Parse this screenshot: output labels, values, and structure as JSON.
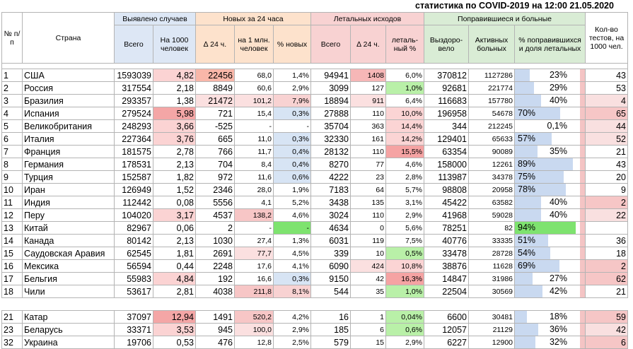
{
  "title": "статистика по COVID-2019 на 12:00 21.05.2020",
  "headers": {
    "index": "№ п/п",
    "country": "Страна",
    "detected": "Выявлено случаев",
    "new24": "Новых за 24 часа",
    "deaths": "Летальных исходов",
    "recovered_sick": "Поправившиеся и больные",
    "tests": "Кол-во тестов, на 1000 чел.",
    "total": "Всего",
    "per1000": "На 1000 человек",
    "delta24": "∆ 24 ч.",
    "per_million": "на 1 млн. человек",
    "pct_new": "% новых",
    "deaths_total": "Всего",
    "deaths_delta": "∆ 24 ч.",
    "lethal_pct": "леталь-ный %",
    "recovered": "Выздоро-вело",
    "active": "Активных больных",
    "pct_recovered": "% поправившихся и доля летальных"
  },
  "rows": [
    {
      "n": "1",
      "country": "США",
      "total": "1593039",
      "per1000": "4,82",
      "d24": "22456",
      "pm": "68,0",
      "pn": "1,4%",
      "dt": "94941",
      "dd": "1408",
      "lp": "6,0%",
      "rec": "370812",
      "act": "1127286",
      "rp": "23%",
      "rpv": 0.23,
      "rpa": "right",
      "tests": "43"
    },
    {
      "n": "2",
      "country": "Россия",
      "total": "317554",
      "per1000": "2,18",
      "d24": "8849",
      "pm": "60,6",
      "pn": "2,9%",
      "dt": "3099",
      "dd": "127",
      "lp": "1,0%",
      "rec": "92681",
      "act": "221774",
      "rp": "29%",
      "rpv": 0.29,
      "rpa": "right",
      "tests": "53"
    },
    {
      "n": "3",
      "country": "Бразилия",
      "total": "293357",
      "per1000": "1,38",
      "d24": "21472",
      "pm": "101,2",
      "pn": "7,9%",
      "dt": "18894",
      "dd": "911",
      "lp": "6,4%",
      "rec": "116683",
      "act": "157780",
      "rp": "40%",
      "rpv": 0.4,
      "rpa": "right",
      "tests": "4"
    },
    {
      "n": "4",
      "country": "Испания",
      "total": "279524",
      "per1000": "5,98",
      "d24": "721",
      "pm": "15,4",
      "pn": "0,3%",
      "dt": "27888",
      "dd": "110",
      "lp": "10,0%",
      "rec": "196958",
      "act": "54678",
      "rp": "70%",
      "rpv": 0.7,
      "rpa": "left",
      "tests": "65"
    },
    {
      "n": "5",
      "country": "Великобритания",
      "total": "248293",
      "per1000": "3,66",
      "d24": "-525",
      "pm": "-",
      "pn": "-",
      "dt": "35704",
      "dd": "363",
      "lp": "14,4%",
      "rec": "344",
      "act": "212245",
      "rp": "0,1%",
      "rpv": 0.001,
      "rpa": "right",
      "tests": "44"
    },
    {
      "n": "6",
      "country": "Италия",
      "total": "227364",
      "per1000": "3,76",
      "d24": "665",
      "pm": "11,0",
      "pn": "0,3%",
      "dt": "32330",
      "dd": "161",
      "lp": "14,2%",
      "rec": "129401",
      "act": "65633",
      "rp": "57%",
      "rpv": 0.57,
      "rpa": "left",
      "tests": "52"
    },
    {
      "n": "7",
      "country": "Франция",
      "total": "181575",
      "per1000": "2,78",
      "d24": "766",
      "pm": "11,7",
      "pn": "0,4%",
      "dt": "28132",
      "dd": "110",
      "lp": "15,5%",
      "rec": "63354",
      "act": "90089",
      "rp": "35%",
      "rpv": 0.35,
      "rpa": "right",
      "tests": "21"
    },
    {
      "n": "8",
      "country": "Германия",
      "total": "178531",
      "per1000": "2,13",
      "d24": "704",
      "pm": "8,4",
      "pn": "0,4%",
      "dt": "8270",
      "dd": "77",
      "lp": "4,6%",
      "rec": "158000",
      "act": "12261",
      "rp": "89%",
      "rpv": 0.89,
      "rpa": "left",
      "tests": "43"
    },
    {
      "n": "9",
      "country": "Турция",
      "total": "152587",
      "per1000": "1,82",
      "d24": "972",
      "pm": "11,6",
      "pn": "0,6%",
      "dt": "4222",
      "dd": "23",
      "lp": "2,8%",
      "rec": "113987",
      "act": "34378",
      "rp": "75%",
      "rpv": 0.75,
      "rpa": "left",
      "tests": "20"
    },
    {
      "n": "10",
      "country": "Иран",
      "total": "126949",
      "per1000": "1,52",
      "d24": "2346",
      "pm": "28,0",
      "pn": "1,9%",
      "dt": "7183",
      "dd": "64",
      "lp": "5,7%",
      "rec": "98808",
      "act": "20958",
      "rp": "78%",
      "rpv": 0.78,
      "rpa": "left",
      "tests": "9"
    },
    {
      "n": "11",
      "country": "Индия",
      "total": "112442",
      "per1000": "0,08",
      "d24": "5556",
      "pm": "4,1",
      "pn": "5,2%",
      "dt": "3438",
      "dd": "135",
      "lp": "3,1%",
      "rec": "45422",
      "act": "63582",
      "rp": "40%",
      "rpv": 0.4,
      "rpa": "right",
      "tests": "2"
    },
    {
      "n": "12",
      "country": "Перу",
      "total": "104020",
      "per1000": "3,17",
      "d24": "4537",
      "pm": "138,2",
      "pn": "4,6%",
      "dt": "3024",
      "dd": "110",
      "lp": "2,9%",
      "rec": "41968",
      "act": "59028",
      "rp": "40%",
      "rpv": 0.4,
      "rpa": "right",
      "tests": "22"
    },
    {
      "n": "13",
      "country": "Китай",
      "total": "82967",
      "per1000": "0,06",
      "d24": "2",
      "pm": "-",
      "pn": "-",
      "dt": "4634",
      "dd": "0",
      "lp": "5,6%",
      "rec": "78251",
      "act": "82",
      "rp": "94%",
      "rpv": 0.94,
      "rpa": "left",
      "tests": ""
    },
    {
      "n": "14",
      "country": "Канада",
      "total": "80142",
      "per1000": "2,13",
      "d24": "1030",
      "pm": "27,4",
      "pn": "1,3%",
      "dt": "6031",
      "dd": "119",
      "lp": "7,5%",
      "rec": "40776",
      "act": "33335",
      "rp": "51%",
      "rpv": 0.51,
      "rpa": "left",
      "tests": "36"
    },
    {
      "n": "15",
      "country": "Саудовская Аравия",
      "total": "62545",
      "per1000": "1,81",
      "d24": "2691",
      "pm": "77,7",
      "pn": "4,5%",
      "dt": "339",
      "dd": "10",
      "lp": "0,5%",
      "rec": "33478",
      "act": "28728",
      "rp": "54%",
      "rpv": 0.54,
      "rpa": "left",
      "tests": "18"
    },
    {
      "n": "16",
      "country": "Мексика",
      "total": "56594",
      "per1000": "0,44",
      "d24": "2248",
      "pm": "17,6",
      "pn": "4,1%",
      "dt": "6090",
      "dd": "424",
      "lp": "10,8%",
      "rec": "38876",
      "act": "11628",
      "rp": "69%",
      "rpv": 0.69,
      "rpa": "left",
      "tests": "2"
    },
    {
      "n": "17",
      "country": "Бельгия",
      "total": "55983",
      "per1000": "4,84",
      "d24": "192",
      "pm": "16,6",
      "pn": "0,3%",
      "dt": "9150",
      "dd": "42",
      "lp": "16,3%",
      "rec": "14847",
      "act": "31986",
      "rp": "27%",
      "rpv": 0.27,
      "rpa": "right",
      "tests": "62"
    },
    {
      "n": "18",
      "country": "Чили",
      "total": "53617",
      "per1000": "2,81",
      "d24": "4038",
      "pm": "211,8",
      "pn": "8,1%",
      "dt": "544",
      "dd": "35",
      "lp": "1,0%",
      "rec": "22504",
      "act": "30569",
      "rp": "42%",
      "rpv": 0.42,
      "rpa": "right",
      "tests": "21"
    },
    {
      "n": "21",
      "country": "Катар",
      "total": "37097",
      "per1000": "12,94",
      "d24": "1491",
      "pm": "520,2",
      "pn": "4,2%",
      "dt": "16",
      "dd": "1",
      "lp": "0,04%",
      "rec": "6600",
      "act": "30481",
      "rp": "18%",
      "rpv": 0.18,
      "rpa": "right",
      "tests": "59"
    },
    {
      "n": "23",
      "country": "Беларусь",
      "total": "33371",
      "per1000": "3,53",
      "d24": "945",
      "pm": "100,0",
      "pn": "2,9%",
      "dt": "185",
      "dd": "6",
      "lp": "0,6%",
      "rec": "12057",
      "act": "21129",
      "rp": "36%",
      "rpv": 0.36,
      "rpa": "right",
      "tests": "42"
    },
    {
      "n": "32",
      "country": "Украина",
      "total": "19706",
      "per1000": "0,53",
      "d24": "476",
      "pm": "12,8",
      "pn": "2,5%",
      "dt": "579",
      "dd": "15",
      "lp": "2,9%",
      "rec": "6227",
      "act": "12900",
      "rp": "32%",
      "rpv": 0.32,
      "rpa": "right",
      "tests": "6"
    }
  ],
  "colors": {
    "per1000_hi": "#f4a6a6",
    "per1000_mid": "#fbd3d3",
    "d24_hi": "#f9b7a9",
    "pm_hi": "#f7c6c6",
    "pm_mid": "#fbe0e0",
    "pn_hi": "#f8d2d2",
    "pn_lo": "#d7e4f4",
    "pn_green": "#7ee36f",
    "dd_hi": "#f6b7b7",
    "lp_hi": "#f5a3a3",
    "lp_mid": "#fbd4d4",
    "lp_lo": "#b9f0a8",
    "tests_hi": "#f6c6c6",
    "tests_lo": "#f9e0e0"
  },
  "highlights": {
    "per1000": {
      "1": "per1000_mid",
      "4": "per1000_hi",
      "5": "per1000_mid",
      "6": "per1000_mid",
      "12": "per1000_mid",
      "17": "per1000_mid",
      "21": "per1000_hi",
      "23": "per1000_mid"
    },
    "d24": {
      "1": "d24_hi",
      "3": "pm_mid"
    },
    "pm": {
      "3": "pm_mid",
      "12": "pm_hi",
      "15": "pm_mid",
      "18": "pm_hi",
      "21": "pm_hi",
      "23": "pm_mid"
    },
    "pn": {
      "3": "pn_hi",
      "4": "pn_lo",
      "6": "pn_lo",
      "7": "pn_lo",
      "8": "pn_lo",
      "9": "pn_lo",
      "13": "pn_green",
      "17": "pn_lo",
      "18": "pn_hi"
    },
    "dd": {
      "1": "dd_hi",
      "3": "pm_mid",
      "16": "pm_mid"
    },
    "lp": {
      "2": "lp_lo",
      "4": "lp_mid",
      "5": "lp_mid",
      "6": "lp_mid",
      "7": "lp_hi",
      "15": "lp_lo",
      "16": "lp_mid",
      "17": "lp_hi",
      "18": "lp_lo",
      "21": "lp_lo",
      "23": "lp_lo"
    },
    "tests": {
      "3": "tests_lo",
      "4": "tests_hi",
      "5": "tests_lo",
      "6": "tests_lo",
      "11": "tests_hi",
      "12": "tests_lo",
      "16": "tests_hi",
      "17": "tests_hi",
      "21": "tests_hi",
      "23": "tests_lo",
      "32": "tests_hi"
    }
  }
}
